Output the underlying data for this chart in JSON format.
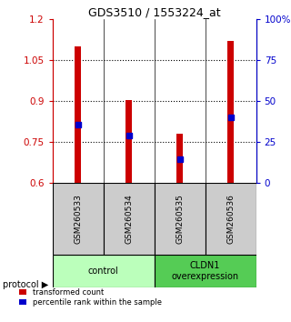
{
  "title": "GDS3510 / 1553224_at",
  "samples": [
    "GSM260533",
    "GSM260534",
    "GSM260535",
    "GSM260536"
  ],
  "red_values": [
    1.1,
    0.905,
    0.78,
    1.12
  ],
  "blue_values": [
    0.815,
    0.775,
    0.685,
    0.84
  ],
  "y_min": 0.6,
  "y_max": 1.2,
  "y_ticks_left": [
    0.6,
    0.75,
    0.9,
    1.05,
    1.2
  ],
  "y_ticks_right": [
    0,
    25,
    50,
    75,
    100
  ],
  "dotted_lines": [
    1.05,
    0.9,
    0.75
  ],
  "bar_color": "#cc0000",
  "blue_color": "#0000cc",
  "protocol_labels": [
    "control",
    "CLDN1\noverexpression"
  ],
  "protocol_colors": [
    "#bbffbb",
    "#55cc55"
  ],
  "sample_box_color": "#cccccc",
  "legend_red": "transformed count",
  "legend_blue": "percentile rank within the sample",
  "bar_width": 0.12
}
